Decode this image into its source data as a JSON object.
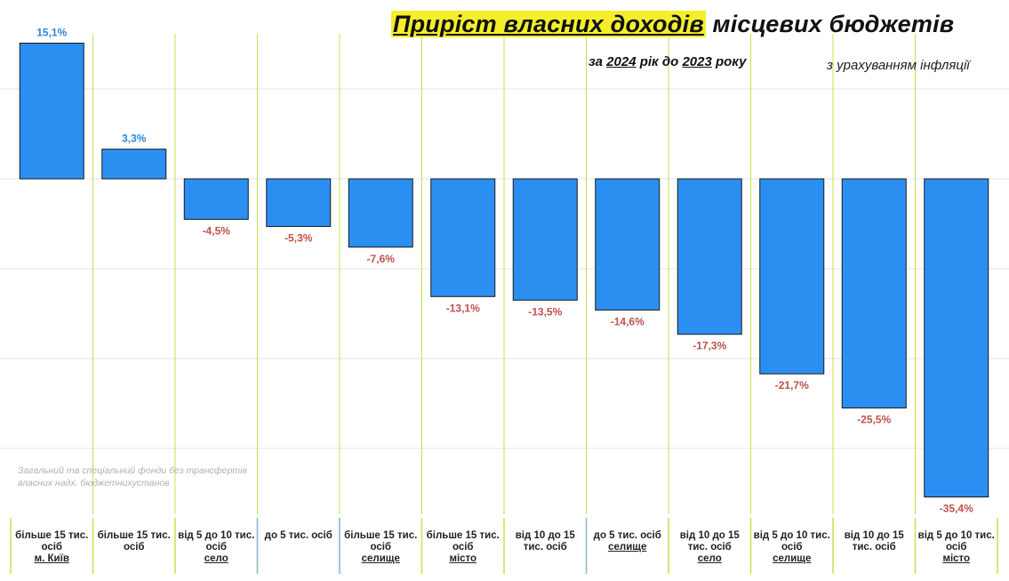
{
  "title": {
    "highlighted": "Приріст власних доходів",
    "rest": "місцевих бюджетів"
  },
  "subtitle": {
    "prefix": "за",
    "year_a": "2024",
    "middle": "рік до",
    "year_b": "2023",
    "suffix": "року"
  },
  "note_right": "з урахуванням інфляції",
  "footnote": {
    "line1": "Загальний та спеціальний фонди без трансфертів",
    "line2": "власних надх. бюджетнихустанов"
  },
  "colors": {
    "bar": "#2b8ff2",
    "bar_outline": "#1a1a1a",
    "positive_label": "#2e86d8",
    "negative_label": "#c0504d",
    "separator": "#c8e04a",
    "gridline": "#e6e6e6"
  },
  "categories": [
    {
      "line1": "більше 15 тис.",
      "line2": "осіб",
      "group": "м. Київ"
    },
    {
      "line1": "більше 15 тис.",
      "line2": "осіб",
      "group": ""
    },
    {
      "line1": "від 5 до 10 тис.",
      "line2": "осіб",
      "group": "село"
    },
    {
      "line1": "до 5 тис. осіб",
      "line2": "",
      "group": ""
    },
    {
      "line1": "більше 15 тис.",
      "line2": "осіб",
      "group": "селище"
    },
    {
      "line1": "більше 15 тис.",
      "line2": "осіб",
      "group": "місто"
    },
    {
      "line1": "від 10 до 15",
      "line2": "тис. осіб",
      "group": ""
    },
    {
      "line1": "до 5 тис. осіб",
      "line2": "",
      "group": "селище"
    },
    {
      "line1": "від 10 до 15",
      "line2": "тис. осіб",
      "group": "село"
    },
    {
      "line1": "від 5 до 10 тис.",
      "line2": "осіб",
      "group": "селище"
    },
    {
      "line1": "від 10 до 15",
      "line2": "тис. осіб",
      "group": ""
    },
    {
      "line1": "від 5 до 10 тис.",
      "line2": "осіб",
      "group": "місто"
    }
  ],
  "chart_data": {
    "type": "bar",
    "title": "Приріст власних доходів місцевих бюджетів",
    "subtitle": "за 2024 рік до 2023 року",
    "note": "з урахуванням інфляції",
    "categories": [
      "більше 15 тис. осіб м. Київ",
      "більше 15 тис. осіб",
      "від 5 до 10 тис. осіб село",
      "до 5 тис. осіб",
      "більше 15 тис. осіб селище",
      "більше 15 тис. осіб місто",
      "від 10 до 15 тис. осіб",
      "до 5 тис. осіб селище",
      "від 10 до 15 тис. осіб село",
      "від 5 до 10 тис. осіб селище",
      "від 10 до 15 тис. осіб",
      "від 5 до 10 тис. осіб місто"
    ],
    "values": [
      15.1,
      3.3,
      -4.5,
      -5.3,
      -7.6,
      -13.1,
      -13.5,
      -14.6,
      -17.3,
      -21.7,
      -25.5,
      -35.4
    ],
    "value_labels": [
      "15,1%",
      "3,3%",
      "-4,5%",
      "-5,3%",
      "-7,6%",
      "-13,1%",
      "-13,5%",
      "-14,6%",
      "-17,3%",
      "-21,7%",
      "-25,5%",
      "-35,4%"
    ],
    "xlabel": "",
    "ylabel": "",
    "ylim": [
      -37,
      16
    ],
    "grid": true,
    "legend": "none"
  }
}
